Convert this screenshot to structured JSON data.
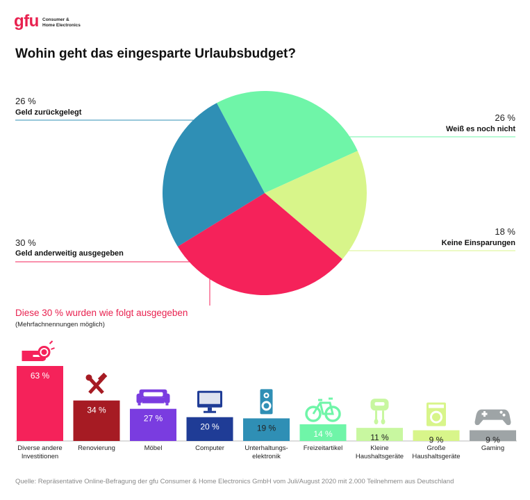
{
  "logo": {
    "mark": "gfu",
    "line1": "Consumer &",
    "line2": "Home Electronics"
  },
  "title": "Wohin geht das eingesparte Urlaubsbudget?",
  "pie_labels": [
    {
      "pct": "26 %",
      "label": "Geld zurückgelegt"
    },
    {
      "pct": "26 %",
      "label": "Weiß es noch nicht"
    },
    {
      "pct": "18 %",
      "label": "Keine Einsparungen"
    },
    {
      "pct": "30 %",
      "label": "Geld anderweitig ausgegeben"
    }
  ],
  "subtitle": "Diese 30 % wurden wie folgt ausgegeben",
  "subnote": "(Mehrfachnennungen möglich)",
  "source": "Quelle: Repräsentative Online-Befragung der gfu Consumer & Home Electronics GmbH vom Juli/August 2020 mit 2.000 Teilnehmern aus Deutschland",
  "chart_data": [
    {
      "type": "pie",
      "title": "Wohin geht das eingesparte Urlaubsbudget?",
      "slices": [
        {
          "name": "Weiß es noch nicht",
          "value": 26,
          "color": "#6ff5a8"
        },
        {
          "name": "Keine Einsparungen",
          "value": 18,
          "color": "#d8f58a"
        },
        {
          "name": "Geld anderweitig ausgegeben",
          "value": 30,
          "color": "#f5225a"
        },
        {
          "name": "Geld zurückgelegt",
          "value": 26,
          "color": "#2f8fb5"
        }
      ]
    },
    {
      "type": "bar",
      "title": "Diese 30 % wurden wie folgt ausgegeben",
      "ylim": [
        0,
        63
      ],
      "categories": [
        [
          "Diverse andere",
          "Investitionen"
        ],
        [
          "Renovierung"
        ],
        [
          "Möbel"
        ],
        [
          "Computer"
        ],
        [
          "Unterhaltungs-",
          "elektronik"
        ],
        [
          "Freizeitartikel"
        ],
        [
          "Kleine",
          "Haushaltsgeräte"
        ],
        [
          "Große",
          "Haushaltsgeräte"
        ],
        [
          "Gaming"
        ]
      ],
      "values": [
        63,
        34,
        27,
        20,
        19,
        14,
        11,
        9,
        9
      ],
      "value_labels": [
        "63 %",
        "34 %",
        "27 %",
        "20 %",
        "19 %",
        "14 %",
        "11 %",
        "9 %",
        "9 %"
      ],
      "colors": [
        "#f5225a",
        "#a61b23",
        "#7a3ce0",
        "#1f3c96",
        "#2f8fb5",
        "#6ff5a8",
        "#c8f7a0",
        "#d8f58a",
        "#9ea4a6"
      ],
      "label_colors": [
        "#ffffff",
        "#ffffff",
        "#ffffff",
        "#ffffff",
        "#222222",
        "#ffffff",
        "#222222",
        "#222222",
        "#222222"
      ],
      "icons": [
        "hand-coin-icon",
        "tools-icon",
        "sofa-icon",
        "monitor-icon",
        "speaker-icon",
        "bicycle-icon",
        "mixer-icon",
        "washing-machine-icon",
        "gamepad-icon"
      ]
    }
  ]
}
